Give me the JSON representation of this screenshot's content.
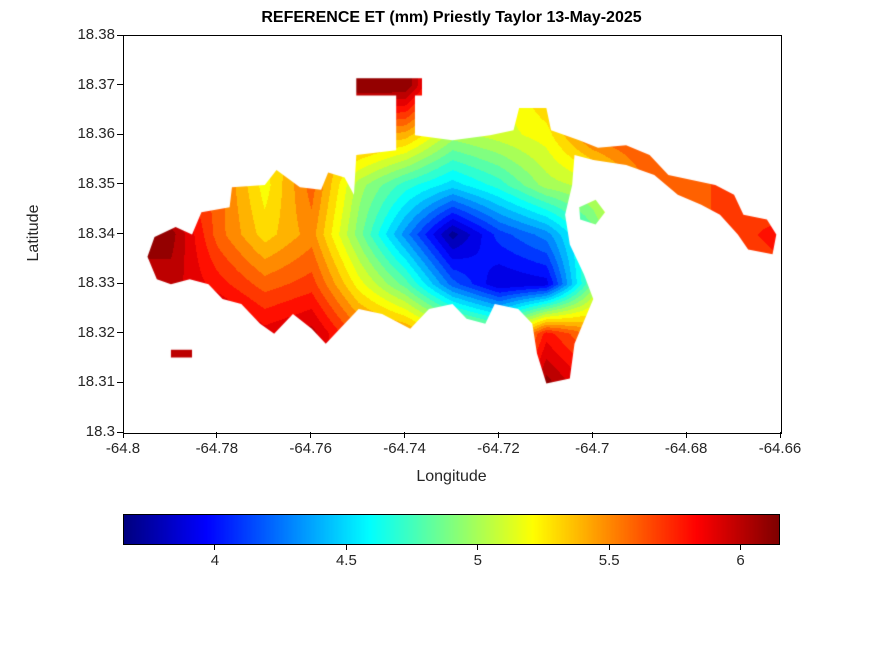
{
  "figure": {
    "title": "REFERENCE ET (mm) Priestly Taylor 13-May-2025",
    "xlabel": "Longitude",
    "ylabel": "Latitude"
  },
  "chart_data": {
    "type": "heatmap",
    "title": "REFERENCE ET (mm) Priestly Taylor 13-May-2025",
    "xlabel": "Longitude",
    "ylabel": "Latitude",
    "xlim": [
      -64.8,
      -64.66
    ],
    "ylim": [
      18.3,
      18.38
    ],
    "grid_on": false,
    "xticks": {
      "values": [
        -64.8,
        -64.78,
        -64.76,
        -64.74,
        -64.72,
        -64.7,
        -64.68,
        -64.66
      ],
      "labels": [
        "-64.8",
        "-64.78",
        "-64.76",
        "-64.74",
        "-64.72",
        "-64.7",
        "-64.68",
        "-64.66"
      ]
    },
    "yticks": {
      "values": [
        18.3,
        18.31,
        18.32,
        18.33,
        18.34,
        18.35,
        18.36,
        18.37,
        18.38
      ],
      "labels": [
        "18.3",
        "18.31",
        "18.32",
        "18.33",
        "18.34",
        "18.35",
        "18.36",
        "18.37",
        "18.38"
      ]
    },
    "colormap": "jet",
    "contour_levels": 25,
    "colorbar": {
      "orientation": "horizontal",
      "clim": [
        3.65,
        6.15
      ],
      "tick_values": [
        4,
        4.5,
        5,
        5.5,
        6
      ],
      "tick_labels": [
        "4",
        "4.5",
        "5",
        "5.5",
        "6"
      ]
    },
    "grid": {
      "lon": [
        -64.8,
        -64.79,
        -64.78,
        -64.77,
        -64.76,
        -64.75,
        -64.74,
        -64.73,
        -64.72,
        -64.71,
        -64.7,
        -64.69,
        -64.68,
        -64.67,
        -64.66
      ],
      "lat": [
        18.38,
        18.37,
        18.36,
        18.35,
        18.34,
        18.33,
        18.32,
        18.31,
        18.3
      ],
      "et_mm": [
        [
          5.8,
          5.8,
          5.9,
          5.9,
          5.9,
          6.1,
          6.1,
          5.5,
          5.2,
          5.5,
          5.6,
          5.6,
          5.6,
          5.6,
          5.6
        ],
        [
          5.8,
          5.8,
          5.8,
          5.8,
          5.8,
          6.15,
          6.15,
          5.4,
          5.1,
          5.4,
          5.5,
          5.6,
          5.6,
          5.6,
          5.6
        ],
        [
          5.6,
          5.6,
          5.5,
          5.3,
          5.4,
          5.5,
          5.4,
          5.0,
          5.1,
          5.2,
          5.6,
          5.7,
          5.6,
          5.6,
          5.6
        ],
        [
          5.9,
          5.8,
          5.6,
          5.2,
          5.6,
          5.0,
          4.7,
          4.5,
          4.7,
          5.0,
          5.1,
          5.5,
          5.6,
          5.7,
          5.6
        ],
        [
          6.0,
          6.1,
          5.6,
          5.3,
          5.5,
          4.9,
          4.3,
          3.7,
          4.1,
          4.3,
          4.8,
          5.4,
          5.6,
          5.7,
          5.8
        ],
        [
          6.1,
          6.0,
          5.8,
          5.6,
          5.7,
          5.2,
          4.8,
          4.2,
          3.85,
          3.9,
          4.9,
          5.3,
          5.5,
          5.6,
          5.7
        ],
        [
          6.0,
          6.0,
          6.1,
          5.9,
          6.0,
          5.6,
          5.5,
          5.2,
          5.0,
          5.8,
          5.5,
          5.4,
          5.4,
          5.4,
          5.4
        ],
        [
          6.0,
          6.0,
          6.0,
          5.9,
          5.9,
          5.8,
          5.7,
          5.5,
          5.4,
          6.1,
          5.8,
          5.5,
          5.5,
          5.5,
          5.5
        ],
        [
          6.0,
          6.0,
          6.0,
          5.9,
          5.9,
          5.8,
          5.7,
          5.6,
          5.5,
          6.0,
          5.8,
          5.5,
          5.5,
          5.5,
          5.5
        ]
      ]
    },
    "regions": {
      "island_outline": [
        [
          -64.795,
          18.3355
        ],
        [
          -64.7935,
          18.3395
        ],
        [
          -64.789,
          18.3415
        ],
        [
          -64.7855,
          18.34
        ],
        [
          -64.7835,
          18.3445
        ],
        [
          -64.7775,
          18.3455
        ],
        [
          -64.777,
          18.3495
        ],
        [
          -64.77,
          18.35
        ],
        [
          -64.7675,
          18.353
        ],
        [
          -64.7625,
          18.3495
        ],
        [
          -64.758,
          18.349
        ],
        [
          -64.7565,
          18.3525
        ],
        [
          -64.753,
          18.3515
        ],
        [
          -64.751,
          18.348
        ],
        [
          -64.7505,
          18.356
        ],
        [
          -64.742,
          18.357
        ],
        [
          -64.742,
          18.368
        ],
        [
          -64.7505,
          18.368
        ],
        [
          -64.7505,
          18.3715
        ],
        [
          -64.7365,
          18.3715
        ],
        [
          -64.7365,
          18.368
        ],
        [
          -64.738,
          18.368
        ],
        [
          -64.738,
          18.36
        ],
        [
          -64.73,
          18.359
        ],
        [
          -64.722,
          18.36
        ],
        [
          -64.717,
          18.361
        ],
        [
          -64.7158,
          18.3655
        ],
        [
          -64.71,
          18.3655
        ],
        [
          -64.709,
          18.361
        ],
        [
          -64.703,
          18.359
        ],
        [
          -64.699,
          18.3575
        ],
        [
          -64.693,
          18.358
        ],
        [
          -64.688,
          18.356
        ],
        [
          -64.684,
          18.352
        ],
        [
          -64.679,
          18.351
        ],
        [
          -64.674,
          18.35
        ],
        [
          -64.67,
          18.348
        ],
        [
          -64.668,
          18.344
        ],
        [
          -64.663,
          18.343
        ],
        [
          -64.661,
          18.34
        ],
        [
          -64.6618,
          18.336
        ],
        [
          -64.667,
          18.337
        ],
        [
          -64.6692,
          18.34
        ],
        [
          -64.673,
          18.344
        ],
        [
          -64.677,
          18.346
        ],
        [
          -64.682,
          18.348
        ],
        [
          -64.687,
          18.352
        ],
        [
          -64.693,
          18.354
        ],
        [
          -64.7,
          18.355
        ],
        [
          -64.704,
          18.356
        ],
        [
          -64.7045,
          18.35
        ],
        [
          -64.706,
          18.344
        ],
        [
          -64.705,
          18.338
        ],
        [
          -64.702,
          18.332
        ],
        [
          -64.7,
          18.327
        ],
        [
          -64.704,
          18.318
        ],
        [
          -64.705,
          18.311
        ],
        [
          -64.71,
          18.31
        ],
        [
          -64.712,
          18.316
        ],
        [
          -64.713,
          18.322
        ],
        [
          -64.716,
          18.325
        ],
        [
          -64.721,
          18.326
        ],
        [
          -64.723,
          18.322
        ],
        [
          -64.727,
          18.323
        ],
        [
          -64.73,
          18.326
        ],
        [
          -64.735,
          18.325
        ],
        [
          -64.739,
          18.321
        ],
        [
          -64.745,
          18.324
        ],
        [
          -64.75,
          18.325
        ],
        [
          -64.754,
          18.321
        ],
        [
          -64.757,
          18.318
        ],
        [
          -64.76,
          18.321
        ],
        [
          -64.764,
          18.324
        ],
        [
          -64.768,
          18.32
        ],
        [
          -64.771,
          18.322
        ],
        [
          -64.775,
          18.326
        ],
        [
          -64.779,
          18.327
        ],
        [
          -64.782,
          18.33
        ],
        [
          -64.786,
          18.331
        ],
        [
          -64.79,
          18.33
        ],
        [
          -64.793,
          18.331
        ]
      ],
      "islets": [
        [
          [
            -64.703,
            18.3455
          ],
          [
            -64.6995,
            18.347
          ],
          [
            -64.6975,
            18.3445
          ],
          [
            -64.6995,
            18.342
          ],
          [
            -64.7028,
            18.343
          ]
        ],
        [
          [
            -64.79,
            18.3168
          ],
          [
            -64.7855,
            18.3168
          ],
          [
            -64.7855,
            18.3152
          ],
          [
            -64.79,
            18.3152
          ]
        ]
      ]
    }
  }
}
